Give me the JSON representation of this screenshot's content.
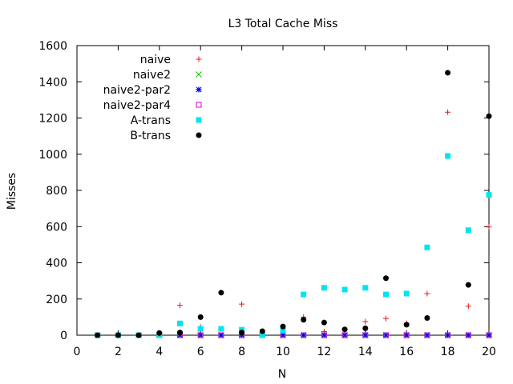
{
  "chart_data": {
    "type": "scatter",
    "title": "L3 Total Cache Miss",
    "xlabel": "N",
    "ylabel": "Misses",
    "xlim": [
      0,
      20
    ],
    "ylim": [
      0,
      1600
    ],
    "xticks": [
      0,
      2,
      4,
      6,
      8,
      10,
      12,
      14,
      16,
      18,
      20
    ],
    "yticks": [
      0,
      200,
      400,
      600,
      800,
      1000,
      1200,
      1400,
      1600
    ],
    "grid": false,
    "legend": "top-left",
    "x": [
      1,
      2,
      3,
      4,
      5,
      6,
      7,
      8,
      9,
      10,
      11,
      12,
      13,
      14,
      15,
      16,
      17,
      18,
      19,
      20
    ],
    "series": [
      {
        "name": "naive",
        "marker": "plus",
        "color": "#e41a1c",
        "values": [
          0,
          0,
          0,
          5,
          165,
          45,
          0,
          172,
          0,
          10,
          100,
          20,
          30,
          75,
          92,
          65,
          230,
          1232,
          160,
          598
        ]
      },
      {
        "name": "naive2",
        "marker": "cross",
        "color": "#00cc00",
        "values": [
          0,
          0,
          0,
          0,
          0,
          0,
          0,
          0,
          0,
          0,
          0,
          0,
          0,
          0,
          0,
          0,
          0,
          0,
          0,
          0
        ]
      },
      {
        "name": "naive2-par2",
        "marker": "star",
        "color": "#0000ee",
        "values": [
          0,
          0,
          0,
          0,
          0,
          0,
          0,
          0,
          0,
          0,
          0,
          0,
          0,
          0,
          0,
          0,
          0,
          0,
          0,
          0
        ]
      },
      {
        "name": "naive2-par4",
        "marker": "open-square",
        "color": "#cc00cc",
        "values": [
          0,
          0,
          0,
          0,
          0,
          0,
          0,
          0,
          0,
          0,
          0,
          0,
          0,
          0,
          0,
          0,
          0,
          0,
          0,
          0
        ]
      },
      {
        "name": "A-trans",
        "marker": "filled-square",
        "color": "#00e5ee",
        "values": [
          0,
          0,
          0,
          0,
          65,
          35,
          35,
          30,
          0,
          25,
          225,
          262,
          252,
          262,
          225,
          230,
          485,
          990,
          580,
          775
        ]
      },
      {
        "name": "B-trans",
        "marker": "filled-circle",
        "color": "#000000",
        "values": [
          0,
          0,
          0,
          12,
          15,
          100,
          235,
          15,
          22,
          48,
          85,
          70,
          32,
          38,
          315,
          58,
          95,
          1450,
          278,
          1210
        ]
      }
    ]
  }
}
